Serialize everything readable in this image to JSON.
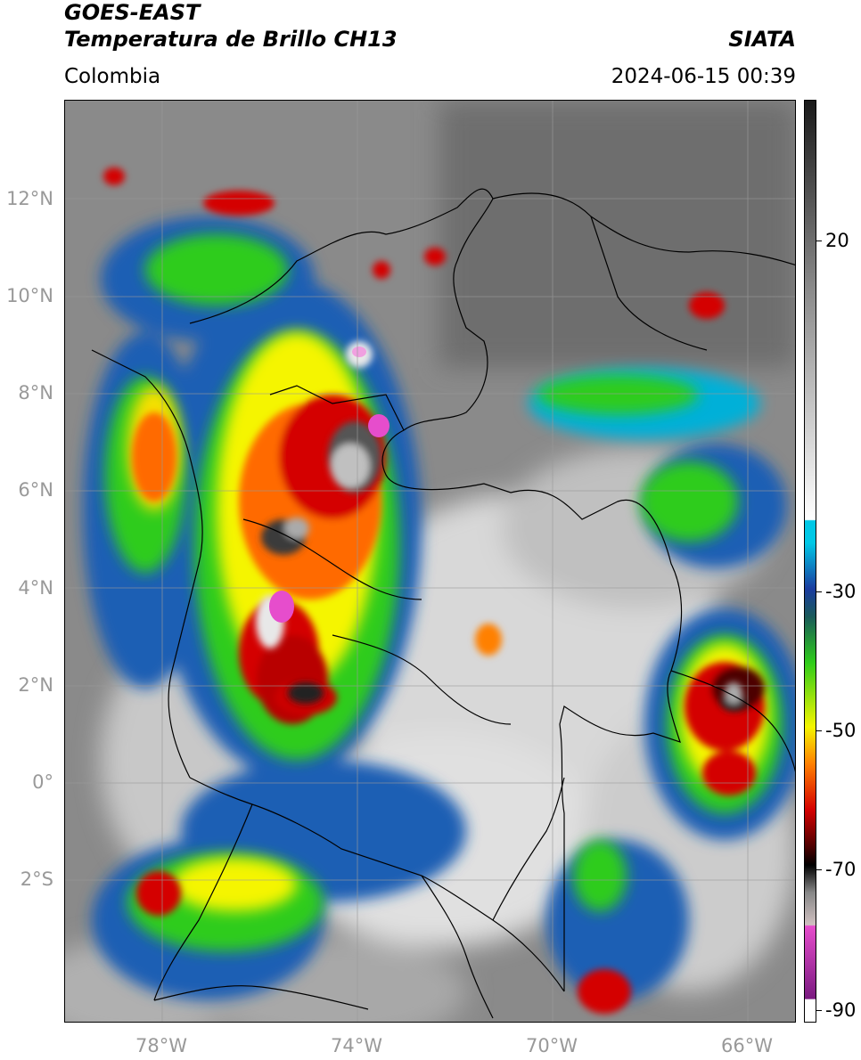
{
  "header": {
    "line1": "GOES-EAST",
    "line2": "Temperatura de Brillo CH13",
    "brand": "SIATA",
    "region": "Colombia",
    "datetime": "2024-06-15 00:39"
  },
  "axes": {
    "lat_labels": [
      "12°N",
      "10°N",
      "8°N",
      "6°N",
      "4°N",
      "2°N",
      "0°",
      "2°S"
    ],
    "lon_labels": [
      "78°W",
      "74°W",
      "70°W",
      "66°W"
    ],
    "lat_range": [
      -4.5,
      14.0
    ],
    "lon_range": [
      -79.5,
      -64.5
    ]
  },
  "colorbar": {
    "tick_labels": [
      "20",
      "-30",
      "-50",
      "-70",
      "-90"
    ],
    "colors": {
      "warm_light": "#ffffff",
      "warm_dark": "#1a1a1a",
      "cyan": "#00c8e6",
      "blue": "#1a3ca0",
      "green": "#2ecc1a",
      "yellow": "#f5f500",
      "orange": "#ff8000",
      "red": "#d40000",
      "darkred": "#4d0000",
      "magenta": "#e64dcc",
      "purple": "#7a1a80"
    }
  }
}
